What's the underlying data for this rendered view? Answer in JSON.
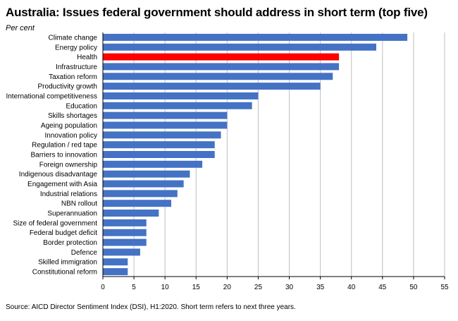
{
  "title": "Australia: Issues federal government should address in short term (top five)",
  "unit_label": "Per cent",
  "source": "Source: AICD Director Sentiment Index (DSI), H1:2020.  Short term refers to next three years.",
  "colors": {
    "bar": "#4472c4",
    "highlight": "#ff0000",
    "grid": "#bfbfbf",
    "axis": "#000000"
  },
  "chart_data": {
    "type": "bar",
    "orientation": "horizontal",
    "title": "Australia: Issues federal government should address in short term (top five)",
    "xlabel": "",
    "ylabel": "Per cent",
    "xlim": [
      0,
      55
    ],
    "xticks": [
      0,
      5,
      10,
      15,
      20,
      25,
      30,
      35,
      40,
      45,
      50,
      55
    ],
    "grid": true,
    "highlight": "Health",
    "categories": [
      "Climate change",
      "Energy policy",
      "Health",
      "Infrastructure",
      "Taxation reform",
      "Productivity growth",
      "International competitiveness",
      "Education",
      "Skills shortages",
      "Ageing population",
      "Innovation policy",
      "Regulation / red tape",
      "Barriers to innovation",
      "Foreign ownership",
      "Indigenous disadvantage",
      "Engagement with Asia",
      "Industrial relations",
      "NBN rollout",
      "Superannuation",
      "Size of federal government",
      "Federal budget deficit",
      "Border protection",
      "Defence",
      "Skilled immigration",
      "Constitutional reform"
    ],
    "values": [
      49,
      44,
      38,
      38,
      37,
      35,
      25,
      24,
      20,
      20,
      19,
      18,
      18,
      16,
      14,
      13,
      12,
      11,
      9,
      7,
      7,
      7,
      6,
      4,
      4
    ]
  }
}
